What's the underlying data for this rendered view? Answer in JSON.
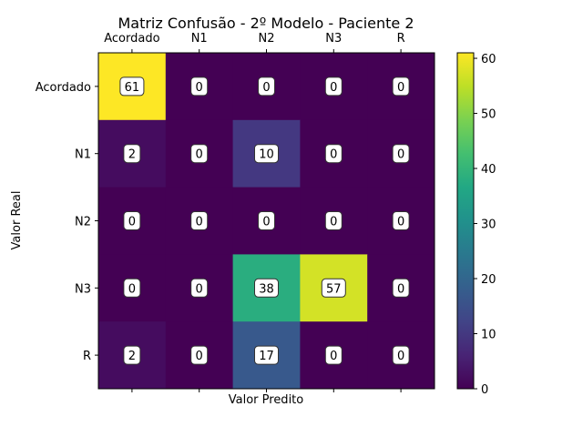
{
  "chart_data": {
    "type": "heatmap",
    "title": "Matriz Confusão - 2º Modelo - Paciente 2",
    "xlabel": "Valor Predito",
    "ylabel": "Valor Real",
    "x_categories": [
      "Acordado",
      "N1",
      "N2",
      "N3",
      "R"
    ],
    "y_categories": [
      "Acordado",
      "N1",
      "N2",
      "N3",
      "R"
    ],
    "values": [
      [
        61,
        0,
        0,
        0,
        0
      ],
      [
        2,
        0,
        10,
        0,
        0
      ],
      [
        0,
        0,
        0,
        0,
        0
      ],
      [
        0,
        0,
        38,
        57,
        0
      ],
      [
        2,
        0,
        17,
        0,
        0
      ]
    ],
    "colorbar": {
      "range": [
        0,
        61
      ],
      "ticks": [
        0,
        10,
        20,
        30,
        40,
        50,
        60
      ],
      "colormap": "viridis"
    },
    "x_axis_position": "top",
    "grid": false
  }
}
